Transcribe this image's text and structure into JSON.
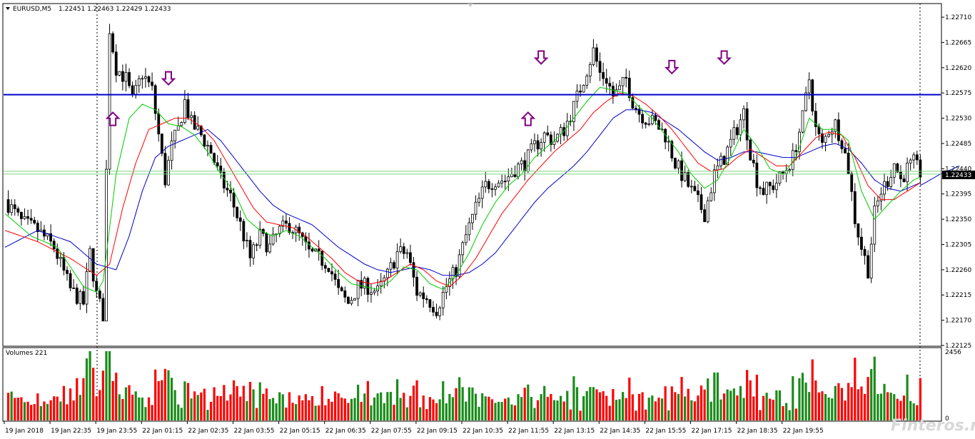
{
  "window": {
    "symbol_label": "EURUSD,M5",
    "ohlc": "1.22451 1.22463 1.22429 1.22433",
    "volumes_label": "Volumes 221",
    "watermark": "Finteros.ru"
  },
  "colors": {
    "bull": "#1a8c1a",
    "bear": "#ff0000",
    "ma_fast": "#00cc00",
    "ma_mid": "#ff0000",
    "ma_slow": "#0000cc",
    "hline": "#0000cc",
    "price_line": "#7fd47f",
    "arrow": "#800080",
    "price_badge": "#000000"
  },
  "chart_data": {
    "type": "candlestick",
    "y_ticks": [
      "1.22710",
      "1.22665",
      "1.22620",
      "1.22575",
      "1.22530",
      "1.22485",
      "1.22440",
      "1.22395",
      "1.22350",
      "1.22305",
      "1.22260",
      "1.22215",
      "1.22170",
      "1.22125"
    ],
    "price_range": [
      1.22125,
      1.22733
    ],
    "current_price": "1.22433",
    "resistance_level": 1.22572,
    "x_labels": [
      "19 Jan 2018",
      "19 Jan 22:35",
      "19 Jan 23:55",
      "22 Jan 01:15",
      "22 Jan 02:35",
      "22 Jan 03:55",
      "22 Jan 05:15",
      "22 Jan 06:35",
      "22 Jan 07:55",
      "22 Jan 09:15",
      "22 Jan 10:35",
      "22 Jan 11:55",
      "22 Jan 13:15",
      "22 Jan 14:35",
      "22 Jan 15:55",
      "22 Jan 17:15",
      "22 Jan 18:35",
      "22 Jan 19:55"
    ],
    "close_path": [
      [
        0,
        1.22385
      ],
      [
        5,
        1.22345
      ],
      [
        10,
        1.2233
      ],
      [
        15,
        1.223
      ],
      [
        20,
        1.22225
      ],
      [
        24,
        1.222
      ],
      [
        26,
        1.2229
      ],
      [
        28,
        1.22215
      ],
      [
        30,
        1.2218
      ],
      [
        32,
        1.2269
      ],
      [
        34,
        1.2262
      ],
      [
        37,
        1.226
      ],
      [
        39,
        1.2256
      ],
      [
        42,
        1.2261
      ],
      [
        45,
        1.2258
      ],
      [
        47,
        1.225
      ],
      [
        49,
        1.2242
      ],
      [
        51,
        1.2248
      ],
      [
        53,
        1.2251
      ],
      [
        55,
        1.2256
      ],
      [
        57,
        1.2252
      ],
      [
        60,
        1.225
      ],
      [
        63,
        1.2247
      ],
      [
        66,
        1.2242
      ],
      [
        69,
        1.2239
      ],
      [
        72,
        1.2234
      ],
      [
        75,
        1.2228
      ],
      [
        78,
        1.2232
      ],
      [
        81,
        1.223
      ],
      [
        84,
        1.2233
      ],
      [
        87,
        1.2234
      ],
      [
        90,
        1.2232
      ],
      [
        93,
        1.2229
      ],
      [
        96,
        1.2228
      ],
      [
        99,
        1.2227
      ],
      [
        102,
        1.2222
      ],
      [
        105,
        1.222
      ],
      [
        108,
        1.2223
      ],
      [
        111,
        1.2223
      ],
      [
        114,
        1.2222
      ],
      [
        117,
        1.2225
      ],
      [
        120,
        1.2229
      ],
      [
        123,
        1.2229
      ],
      [
        126,
        1.2222
      ],
      [
        129,
        1.2221
      ],
      [
        132,
        1.2219
      ],
      [
        135,
        1.2223
      ],
      [
        138,
        1.2226
      ],
      [
        141,
        1.2232
      ],
      [
        144,
        1.2237
      ],
      [
        147,
        1.2241
      ],
      [
        150,
        1.2242
      ],
      [
        153,
        1.2242
      ],
      [
        156,
        1.2244
      ],
      [
        159,
        1.2245
      ],
      [
        162,
        1.2248
      ],
      [
        165,
        1.225
      ],
      [
        168,
        1.2249
      ],
      [
        171,
        1.2251
      ],
      [
        174,
        1.2255
      ],
      [
        177,
        1.226
      ],
      [
        180,
        1.2265
      ],
      [
        182,
        1.2261
      ],
      [
        184,
        1.226
      ],
      [
        186,
        1.2257
      ],
      [
        188,
        1.2258
      ],
      [
        190,
        1.226
      ],
      [
        192,
        1.2256
      ],
      [
        194,
        1.2254
      ],
      [
        196,
        1.2253
      ],
      [
        199,
        1.2252
      ],
      [
        202,
        1.225
      ],
      [
        205,
        1.2245
      ],
      [
        208,
        1.2242
      ],
      [
        211,
        1.2239
      ],
      [
        214,
        1.2236
      ],
      [
        217,
        1.2243
      ],
      [
        220,
        1.2246
      ],
      [
        223,
        1.225
      ],
      [
        226,
        1.2254
      ],
      [
        228,
        1.2247
      ],
      [
        230,
        1.2242
      ],
      [
        232,
        1.224
      ],
      [
        235,
        1.2241
      ],
      [
        238,
        1.2243
      ],
      [
        241,
        1.2246
      ],
      [
        244,
        1.2253
      ],
      [
        246,
        1.226
      ],
      [
        248,
        1.2251
      ],
      [
        250,
        1.2248
      ],
      [
        252,
        1.2251
      ],
      [
        254,
        1.2252
      ],
      [
        256,
        1.2249
      ],
      [
        258,
        1.2244
      ],
      [
        260,
        1.2235
      ],
      [
        262,
        1.223
      ],
      [
        264,
        1.2226
      ],
      [
        266,
        1.2236
      ],
      [
        268,
        1.224
      ],
      [
        270,
        1.2242
      ],
      [
        272,
        1.2245
      ],
      [
        274,
        1.2242
      ],
      [
        276,
        1.2244
      ],
      [
        278,
        1.2245
      ],
      [
        280,
        1.22433
      ]
    ],
    "ma_fast_path": [
      [
        0,
        1.2236
      ],
      [
        8,
        1.2232
      ],
      [
        16,
        1.223
      ],
      [
        24,
        1.2223
      ],
      [
        28,
        1.2222
      ],
      [
        30,
        1.2224
      ],
      [
        34,
        1.2243
      ],
      [
        38,
        1.2253
      ],
      [
        42,
        1.22555
      ],
      [
        46,
        1.22545
      ],
      [
        50,
        1.2252
      ],
      [
        54,
        1.22515
      ],
      [
        58,
        1.225
      ],
      [
        62,
        1.2247
      ],
      [
        66,
        1.2243
      ],
      [
        70,
        1.224
      ],
      [
        74,
        1.2235
      ],
      [
        78,
        1.2233
      ],
      [
        82,
        1.2232
      ],
      [
        86,
        1.2233
      ],
      [
        90,
        1.2232
      ],
      [
        94,
        1.223
      ],
      [
        98,
        1.2228
      ],
      [
        102,
        1.22255
      ],
      [
        106,
        1.22235
      ],
      [
        110,
        1.2223
      ],
      [
        114,
        1.22225
      ],
      [
        118,
        1.2224
      ],
      [
        122,
        1.22265
      ],
      [
        126,
        1.2226
      ],
      [
        130,
        1.22235
      ],
      [
        134,
        1.22225
      ],
      [
        138,
        1.2225
      ],
      [
        142,
        1.2229
      ],
      [
        146,
        1.2234
      ],
      [
        150,
        1.2238
      ],
      [
        154,
        1.2241
      ],
      [
        158,
        1.2243
      ],
      [
        162,
        1.2246
      ],
      [
        166,
        1.2248
      ],
      [
        170,
        1.225
      ],
      [
        174,
        1.2253
      ],
      [
        178,
        1.2256
      ],
      [
        182,
        1.22585
      ],
      [
        186,
        1.2258
      ],
      [
        190,
        1.22575
      ],
      [
        194,
        1.2255
      ],
      [
        198,
        1.2253
      ],
      [
        202,
        1.225
      ],
      [
        206,
        1.2247
      ],
      [
        210,
        1.2243
      ],
      [
        214,
        1.22405
      ],
      [
        218,
        1.2242
      ],
      [
        222,
        1.2246
      ],
      [
        226,
        1.2251
      ],
      [
        230,
        1.2248
      ],
      [
        234,
        1.2244
      ],
      [
        238,
        1.2243
      ],
      [
        242,
        1.2246
      ],
      [
        246,
        1.2253
      ],
      [
        250,
        1.2251
      ],
      [
        254,
        1.2251
      ],
      [
        258,
        1.2249
      ],
      [
        262,
        1.224
      ],
      [
        266,
        1.2235
      ],
      [
        270,
        1.22375
      ],
      [
        274,
        1.224
      ],
      [
        278,
        1.2242
      ],
      [
        280,
        1.22425
      ]
    ],
    "ma_mid_path": [
      [
        0,
        1.2233
      ],
      [
        10,
        1.2231
      ],
      [
        20,
        1.2228
      ],
      [
        28,
        1.2225
      ],
      [
        32,
        1.2227
      ],
      [
        36,
        1.2237
      ],
      [
        40,
        1.2245
      ],
      [
        44,
        1.2251
      ],
      [
        48,
        1.2252
      ],
      [
        52,
        1.2253
      ],
      [
        56,
        1.2253
      ],
      [
        60,
        1.22515
      ],
      [
        64,
        1.2249
      ],
      [
        68,
        1.2245
      ],
      [
        72,
        1.2241
      ],
      [
        76,
        1.2237
      ],
      [
        80,
        1.22345
      ],
      [
        84,
        1.2234
      ],
      [
        88,
        1.22335
      ],
      [
        92,
        1.2232
      ],
      [
        96,
        1.223
      ],
      [
        100,
        1.2228
      ],
      [
        104,
        1.22255
      ],
      [
        108,
        1.2224
      ],
      [
        112,
        1.22235
      ],
      [
        116,
        1.2224
      ],
      [
        120,
        1.22255
      ],
      [
        124,
        1.2227
      ],
      [
        128,
        1.2226
      ],
      [
        132,
        1.2224
      ],
      [
        136,
        1.2223
      ],
      [
        140,
        1.2225
      ],
      [
        144,
        1.2228
      ],
      [
        148,
        1.2232
      ],
      [
        152,
        1.2236
      ],
      [
        156,
        1.2239
      ],
      [
        160,
        1.2242
      ],
      [
        164,
        1.22445
      ],
      [
        168,
        1.2247
      ],
      [
        172,
        1.2249
      ],
      [
        176,
        1.2251
      ],
      [
        180,
        1.2254
      ],
      [
        184,
        1.2256
      ],
      [
        188,
        1.22575
      ],
      [
        192,
        1.2257
      ],
      [
        196,
        1.22555
      ],
      [
        200,
        1.22535
      ],
      [
        204,
        1.2251
      ],
      [
        208,
        1.2248
      ],
      [
        212,
        1.2245
      ],
      [
        216,
        1.22435
      ],
      [
        220,
        1.2244
      ],
      [
        224,
        1.2246
      ],
      [
        228,
        1.22475
      ],
      [
        232,
        1.2246
      ],
      [
        236,
        1.22445
      ],
      [
        240,
        1.22445
      ],
      [
        244,
        1.2247
      ],
      [
        248,
        1.22495
      ],
      [
        252,
        1.22505
      ],
      [
        256,
        1.225
      ],
      [
        260,
        1.2246
      ],
      [
        264,
        1.2241
      ],
      [
        268,
        1.22385
      ],
      [
        272,
        1.22385
      ],
      [
        276,
        1.224
      ],
      [
        280,
        1.22415
      ]
    ],
    "ma_slow_path": [
      [
        0,
        1.223
      ],
      [
        10,
        1.2233
      ],
      [
        20,
        1.2231
      ],
      [
        28,
        1.2227
      ],
      [
        34,
        1.2226
      ],
      [
        38,
        1.2232
      ],
      [
        42,
        1.224
      ],
      [
        46,
        1.2246
      ],
      [
        50,
        1.2248
      ],
      [
        54,
        1.2249
      ],
      [
        58,
        1.225
      ],
      [
        62,
        1.2251
      ],
      [
        66,
        1.2249
      ],
      [
        70,
        1.2246
      ],
      [
        74,
        1.2243
      ],
      [
        78,
        1.224
      ],
      [
        82,
        1.22375
      ],
      [
        86,
        1.2236
      ],
      [
        90,
        1.2235
      ],
      [
        94,
        1.2234
      ],
      [
        98,
        1.2232
      ],
      [
        102,
        1.223
      ],
      [
        106,
        1.22285
      ],
      [
        110,
        1.2227
      ],
      [
        114,
        1.2226
      ],
      [
        118,
        1.22255
      ],
      [
        122,
        1.2226
      ],
      [
        126,
        1.22265
      ],
      [
        130,
        1.2226
      ],
      [
        134,
        1.2225
      ],
      [
        138,
        1.2225
      ],
      [
        142,
        1.22255
      ],
      [
        146,
        1.2227
      ],
      [
        150,
        1.2229
      ],
      [
        154,
        1.2232
      ],
      [
        158,
        1.2235
      ],
      [
        162,
        1.2238
      ],
      [
        166,
        1.22405
      ],
      [
        170,
        1.22425
      ],
      [
        174,
        1.22445
      ],
      [
        178,
        1.2247
      ],
      [
        182,
        1.225
      ],
      [
        186,
        1.2253
      ],
      [
        190,
        1.22545
      ],
      [
        194,
        1.22545
      ],
      [
        198,
        1.2254
      ],
      [
        202,
        1.22525
      ],
      [
        206,
        1.2251
      ],
      [
        210,
        1.2249
      ],
      [
        214,
        1.2247
      ],
      [
        218,
        1.22455
      ],
      [
        222,
        1.2246
      ],
      [
        226,
        1.2247
      ],
      [
        230,
        1.2247
      ],
      [
        234,
        1.22465
      ],
      [
        238,
        1.2246
      ],
      [
        242,
        1.2246
      ],
      [
        246,
        1.2247
      ],
      [
        250,
        1.2248
      ],
      [
        254,
        1.22485
      ],
      [
        258,
        1.22475
      ],
      [
        262,
        1.2245
      ],
      [
        266,
        1.2242
      ],
      [
        270,
        1.22405
      ],
      [
        274,
        1.224
      ],
      [
        278,
        1.2241
      ],
      [
        280,
        1.22415
      ]
    ],
    "ma_extension": [
      [
        280,
        1.2241
      ],
      [
        286,
        1.2243
      ],
      [
        292,
        1.22445
      ]
    ],
    "arrows_down": [
      {
        "bar": 50,
        "price": 1.226
      },
      {
        "bar": 164,
        "price": 1.22637
      },
      {
        "bar": 204,
        "price": 1.2262
      },
      {
        "bar": 220,
        "price": 1.22637
      }
    ],
    "arrows_up": [
      {
        "bar": 33,
        "price": 1.2253
      },
      {
        "bar": 160,
        "price": 1.2253
      }
    ],
    "volume_max": "2456",
    "volume_min": "0"
  }
}
